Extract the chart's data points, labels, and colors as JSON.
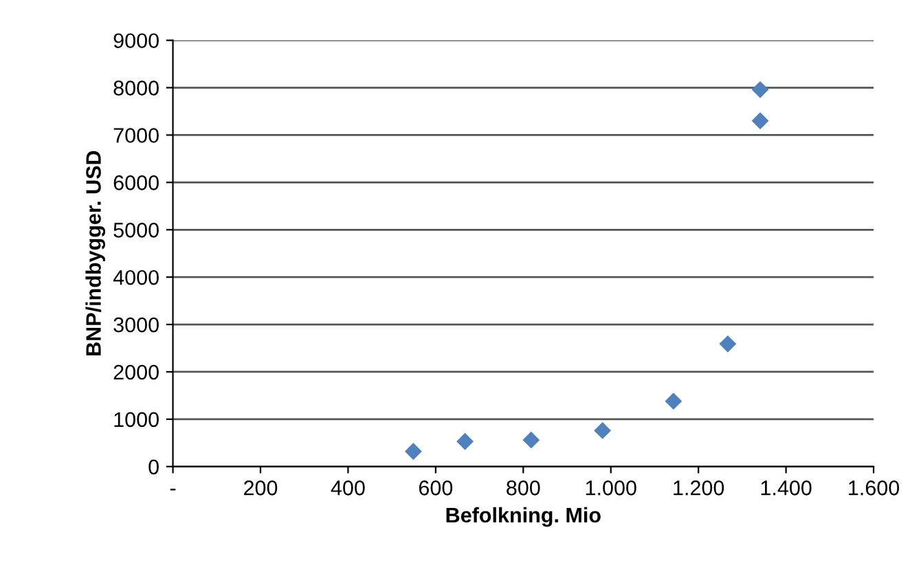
{
  "chart_data": {
    "type": "scatter",
    "xlabel": "Befolkning. Mio",
    "ylabel": "BNP/indbygger. USD",
    "x": [
      549,
      667,
      818,
      981,
      1143,
      1267,
      1341,
      1341
    ],
    "values": [
      320,
      530,
      560,
      760,
      1380,
      2590,
      7300,
      7960
    ],
    "color": "#4f81bd",
    "marker": "diamond",
    "xlim": [
      0,
      1600
    ],
    "xticks": [
      {
        "value": 0,
        "label": "-"
      },
      200,
      400,
      600,
      800,
      {
        "value": 1000,
        "label": "1.000"
      },
      {
        "value": 1200,
        "label": "1.200"
      },
      {
        "value": 1400,
        "label": "1.400"
      },
      {
        "value": 1600,
        "label": "1.600"
      }
    ],
    "ylim": [
      0,
      9000
    ],
    "yticks": [
      0,
      1000,
      2000,
      3000,
      4000,
      5000,
      6000,
      7000,
      8000,
      9000
    ],
    "grid": "y"
  }
}
